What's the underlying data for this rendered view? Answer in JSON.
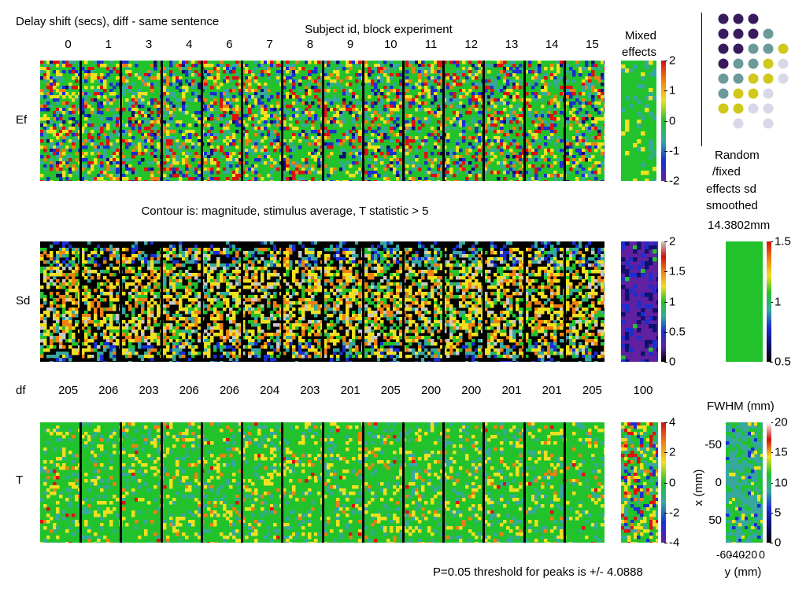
{
  "title": "Delay shift (secs), diff - same sentence",
  "subject_header": "Subject id, block experiment",
  "subject_ids": [
    "0",
    "1",
    "3",
    "4",
    "6",
    "7",
    "8",
    "9",
    "10",
    "11",
    "12",
    "13",
    "14",
    "15"
  ],
  "mixed_effects_label": [
    "Mixed",
    "effects"
  ],
  "row_labels": {
    "ef": "Ef",
    "sd": "Sd",
    "df": "df",
    "t": "T"
  },
  "contour_note": "Contour is: magnitude, stimulus average, T statistic > 5",
  "df_values": [
    "205",
    "206",
    "203",
    "206",
    "206",
    "204",
    "203",
    "201",
    "205",
    "200",
    "200",
    "201",
    "201",
    "205"
  ],
  "df_mixed": "100",
  "random_fixed_label": [
    "Random",
    "/fixed",
    "effects sd",
    "smoothed"
  ],
  "smoothing": "14.3802mm",
  "fwhm_label": "FWHM (mm)",
  "threshold_note": "P=0.05 threshold for peaks is +/- 4.0888",
  "colorbars": {
    "ef": [
      "2",
      "1",
      "0",
      "-1",
      "-2"
    ],
    "sd": [
      "2",
      "1.5",
      "1",
      "0.5",
      "0"
    ],
    "t": [
      "4",
      "2",
      "0",
      "-2",
      "-4"
    ],
    "ratio": [
      "1.5",
      "1",
      "0.5"
    ],
    "fwhm": [
      "20",
      "15",
      "10",
      "5",
      "0"
    ]
  },
  "fwhm_axes": {
    "x_label": "x (mm)",
    "y_label": "y (mm)",
    "x_ticks": [
      "-50",
      "0",
      "50"
    ],
    "y_ticks": [
      "-60",
      "-40",
      "-20",
      "0"
    ]
  },
  "colors": {
    "green": "#22c22c",
    "teal": "#36a8a0",
    "blue": "#1a2fd0",
    "navy": "#101070",
    "yellow": "#f0e020",
    "orange": "#f08010",
    "red": "#e01010",
    "purple": "#6020a0",
    "grey": "#c8c8c8",
    "black": "#000000"
  },
  "slice_grid_legend": {
    "colors": [
      "#3a1a5e",
      "#6b9a9a",
      "#d0c81a",
      "#d8d8e8"
    ],
    "rows": [
      [
        0,
        0,
        0,
        -1,
        -1
      ],
      [
        0,
        0,
        0,
        1,
        -1
      ],
      [
        0,
        0,
        1,
        1,
        2
      ],
      [
        0,
        1,
        1,
        2,
        3
      ],
      [
        1,
        1,
        2,
        2,
        3
      ],
      [
        1,
        2,
        2,
        3,
        -1
      ],
      [
        2,
        2,
        3,
        3,
        -1
      ],
      [
        -1,
        3,
        -1,
        3,
        -1
      ]
    ]
  },
  "chart_data": {
    "type": "heatmap",
    "title": "Delay shift (secs), diff - same sentence",
    "subjects": [
      "0",
      "1",
      "3",
      "4",
      "6",
      "7",
      "8",
      "9",
      "10",
      "11",
      "12",
      "13",
      "14",
      "15"
    ],
    "rows": [
      "Ef",
      "Sd",
      "T"
    ],
    "df": [
      205,
      206,
      203,
      206,
      206,
      204,
      203,
      201,
      205,
      200,
      200,
      201,
      201,
      205
    ],
    "df_mixed": 100,
    "color_ranges": {
      "ef": [
        -2,
        2
      ],
      "sd": [
        0,
        2
      ],
      "t": [
        -4,
        4
      ],
      "random_fixed_ratio": [
        0.5,
        1.5
      ],
      "fwhm_mm": [
        0,
        20
      ]
    },
    "peak_threshold": 4.0888,
    "fwhm_smoothing_mm": 14.3802
  }
}
